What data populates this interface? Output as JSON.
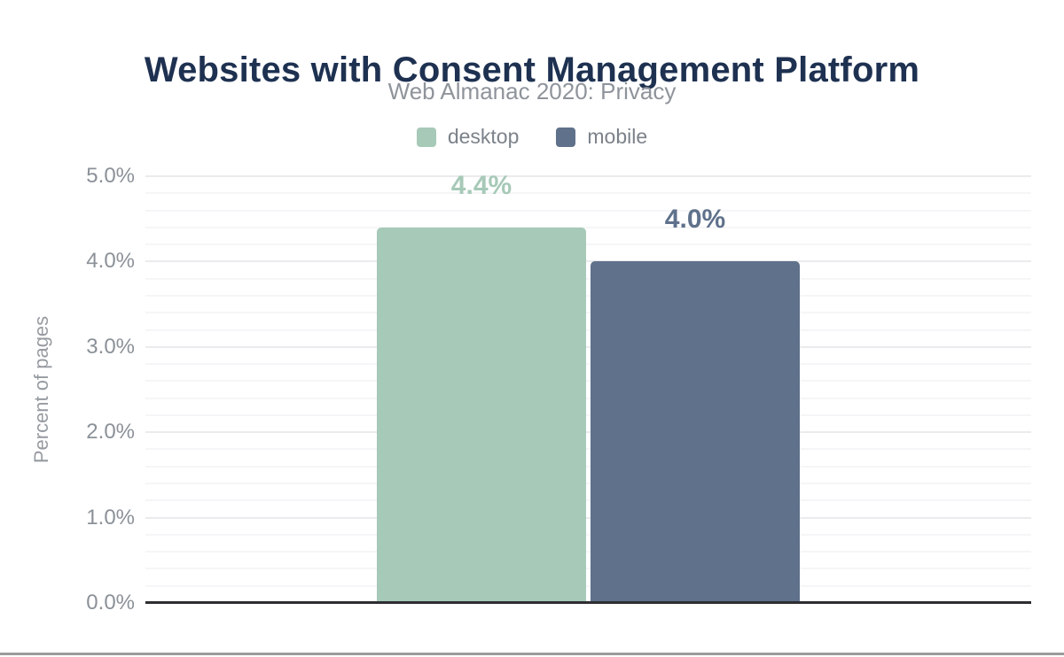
{
  "chart_data": {
    "type": "bar",
    "title": "Websites with Consent Management Platform",
    "subtitle": "Web Almanac 2020: Privacy",
    "categories": [
      "desktop",
      "mobile"
    ],
    "values": [
      4.4,
      4.0
    ],
    "value_labels": [
      "4.4%",
      "4.0%"
    ],
    "series": [
      {
        "name": "desktop",
        "value": 4.4,
        "label": "4.4%",
        "color": "#a7c9b8"
      },
      {
        "name": "mobile",
        "value": 4.0,
        "label": "4.0%",
        "color": "#5f718b"
      }
    ],
    "xlabel": "",
    "ylabel": "Percent of pages",
    "ylim": [
      0,
      5
    ],
    "ytick_labels": [
      "0.0%",
      "1.0%",
      "2.0%",
      "3.0%",
      "4.0%",
      "5.0%"
    ],
    "ytick_step_major": 1.0,
    "ytick_step_minor": 0.2,
    "grid": "horizontal",
    "legend_position": "top",
    "legend": [
      {
        "label": "desktop",
        "color": "#a7c9b8"
      },
      {
        "label": "mobile",
        "color": "#5f718b"
      }
    ]
  },
  "colors": {
    "title_text": "#1e3151",
    "muted_text": "#8f949b",
    "axis_line": "#2e2e32",
    "desktop_accent": "#a7c9b8",
    "mobile_accent": "#5f718b"
  }
}
